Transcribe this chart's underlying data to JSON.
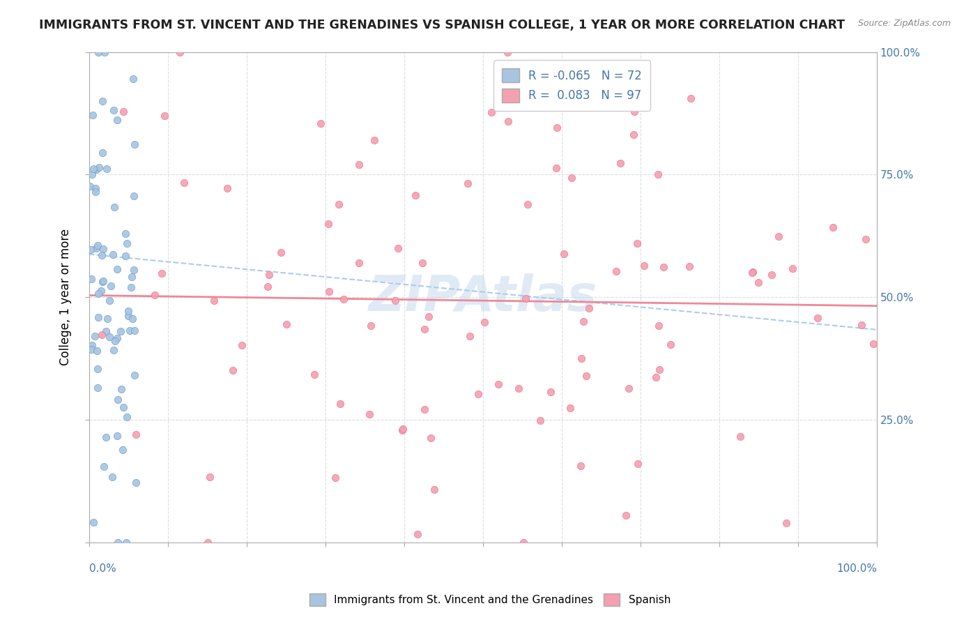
{
  "title": "IMMIGRANTS FROM ST. VINCENT AND THE GRENADINES VS SPANISH COLLEGE, 1 YEAR OR MORE CORRELATION CHART",
  "source": "Source: ZipAtlas.com",
  "ylabel": "College, 1 year or more",
  "R1": -0.065,
  "N1": 72,
  "R2": 0.083,
  "N2": 97,
  "color_blue": "#a8c4e0",
  "color_pink": "#f4a0b0",
  "color_blue_dark": "#6699cc",
  "color_pink_dark": "#e87090",
  "color_trendline_blue": "#aaccee",
  "color_trendline_pink": "#ee8899",
  "watermark": "ZIPAtlas",
  "watermark_color": "#ccddee"
}
